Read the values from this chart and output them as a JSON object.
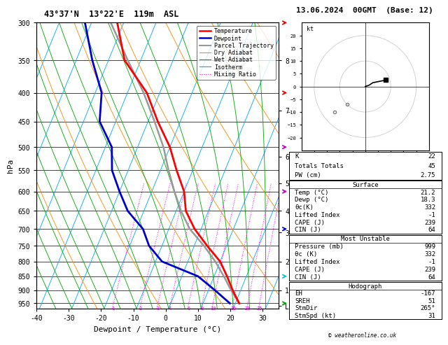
{
  "title_left": "43°37'N  13°22'E  119m  ASL",
  "title_right": "13.06.2024  00GMT  (Base: 12)",
  "xlabel": "Dewpoint / Temperature (°C)",
  "ylabel_left": "hPa",
  "pressure_levels": [
    300,
    350,
    400,
    450,
    500,
    550,
    600,
    650,
    700,
    750,
    800,
    850,
    900,
    950
  ],
  "temp_xlim": [
    -40,
    35
  ],
  "pressure_ylim": [
    970,
    300
  ],
  "km_ticks": {
    "8": 350,
    "7": 430,
    "6": 520,
    "5": 580,
    "4": 650,
    "3": 710,
    "2": 800,
    "1": 900,
    "LCL": 960
  },
  "mix_ratio_values": [
    1,
    2,
    3,
    4,
    6,
    8,
    10,
    15,
    20,
    25
  ],
  "skew_factor": 37,
  "legend_items": [
    {
      "label": "Temperature",
      "color": "#ff0000",
      "lw": 1.8,
      "ls": "-"
    },
    {
      "label": "Dewpoint",
      "color": "#0000cc",
      "lw": 1.8,
      "ls": "-"
    },
    {
      "label": "Parcel Trajectory",
      "color": "#999999",
      "lw": 1.5,
      "ls": "-"
    },
    {
      "label": "Dry Adiabat",
      "color": "#ff8c00",
      "lw": 0.8,
      "ls": "-"
    },
    {
      "label": "Wet Adiabat",
      "color": "#00aa00",
      "lw": 0.8,
      "ls": "-"
    },
    {
      "label": "Isotherm",
      "color": "#00aaff",
      "lw": 0.8,
      "ls": "-"
    },
    {
      "label": "Mixing Ratio",
      "color": "#ff00ff",
      "lw": 0.8,
      "ls": ":"
    }
  ],
  "isotherm_color": "#00aaff",
  "dry_adiabat_color": "#ff8c00",
  "wet_adiabat_color": "#00aa00",
  "mix_ratio_color": "#ff00ff",
  "temp_color": "#ff0000",
  "dewp_color": "#0000cc",
  "parcel_color": "#999999",
  "stats": {
    "K": "22",
    "Totals Totals": "45",
    "PW (cm)": "2.75",
    "Surface_rows": [
      [
        "Temp (°C)",
        "21.2"
      ],
      [
        "Dewp (°C)",
        "18.3"
      ],
      [
        "θc(K)",
        "332"
      ],
      [
        "Lifted Index",
        "-1"
      ],
      [
        "CAPE (J)",
        "239"
      ],
      [
        "CIN (J)",
        "64"
      ]
    ],
    "MostUnstable_rows": [
      [
        "Pressure (mb)",
        "999"
      ],
      [
        "θc (K)",
        "332"
      ],
      [
        "Lifted Index",
        "-1"
      ],
      [
        "CAPE (J)",
        "239"
      ],
      [
        "CIN (J)",
        "64"
      ]
    ],
    "Hodograph_rows": [
      [
        "EH",
        "-167"
      ],
      [
        "SREH",
        "51"
      ],
      [
        "StmDir",
        "265°"
      ],
      [
        "StmSpd (kt)",
        "31"
      ]
    ]
  },
  "temperature_profile": {
    "pressure": [
      950,
      900,
      850,
      800,
      750,
      700,
      650,
      600,
      550,
      500,
      450,
      400,
      350,
      300
    ],
    "temp": [
      21.2,
      17.5,
      14.0,
      10.0,
      4.0,
      -2.0,
      -7.0,
      -10.0,
      -15.0,
      -20.0,
      -27.0,
      -34.0,
      -45.0,
      -52.0
    ]
  },
  "dewpoint_profile": {
    "pressure": [
      950,
      900,
      850,
      800,
      750,
      700,
      650,
      600,
      550,
      500,
      450,
      400,
      350,
      300
    ],
    "temp": [
      18.3,
      12.0,
      5.0,
      -8.0,
      -14.0,
      -18.0,
      -25.0,
      -30.0,
      -35.0,
      -38.0,
      -45.0,
      -48.0,
      -55.0,
      -62.0
    ]
  },
  "parcel_profile": {
    "pressure": [
      950,
      900,
      850,
      800,
      750,
      700,
      650,
      600,
      550,
      500,
      450,
      400,
      350,
      300
    ],
    "temp": [
      21.2,
      17.0,
      13.0,
      8.5,
      3.0,
      -3.5,
      -8.5,
      -13.0,
      -17.5,
      -22.0,
      -28.0,
      -35.0,
      -44.0,
      -54.0
    ]
  },
  "wind_arrows": [
    {
      "pressure": 300,
      "color": "#ff0000",
      "dir": "right"
    },
    {
      "pressure": 400,
      "color": "#ff0000",
      "dir": "right"
    },
    {
      "pressure": 500,
      "color": "#cc00cc",
      "dir": "right"
    },
    {
      "pressure": 600,
      "color": "#cc00cc",
      "dir": "right"
    },
    {
      "pressure": 700,
      "color": "#0000ff",
      "dir": "right"
    },
    {
      "pressure": 850,
      "color": "#00cccc",
      "dir": "right"
    },
    {
      "pressure": 950,
      "color": "#00aa00",
      "dir": "right"
    }
  ],
  "background_color": "#ffffff"
}
